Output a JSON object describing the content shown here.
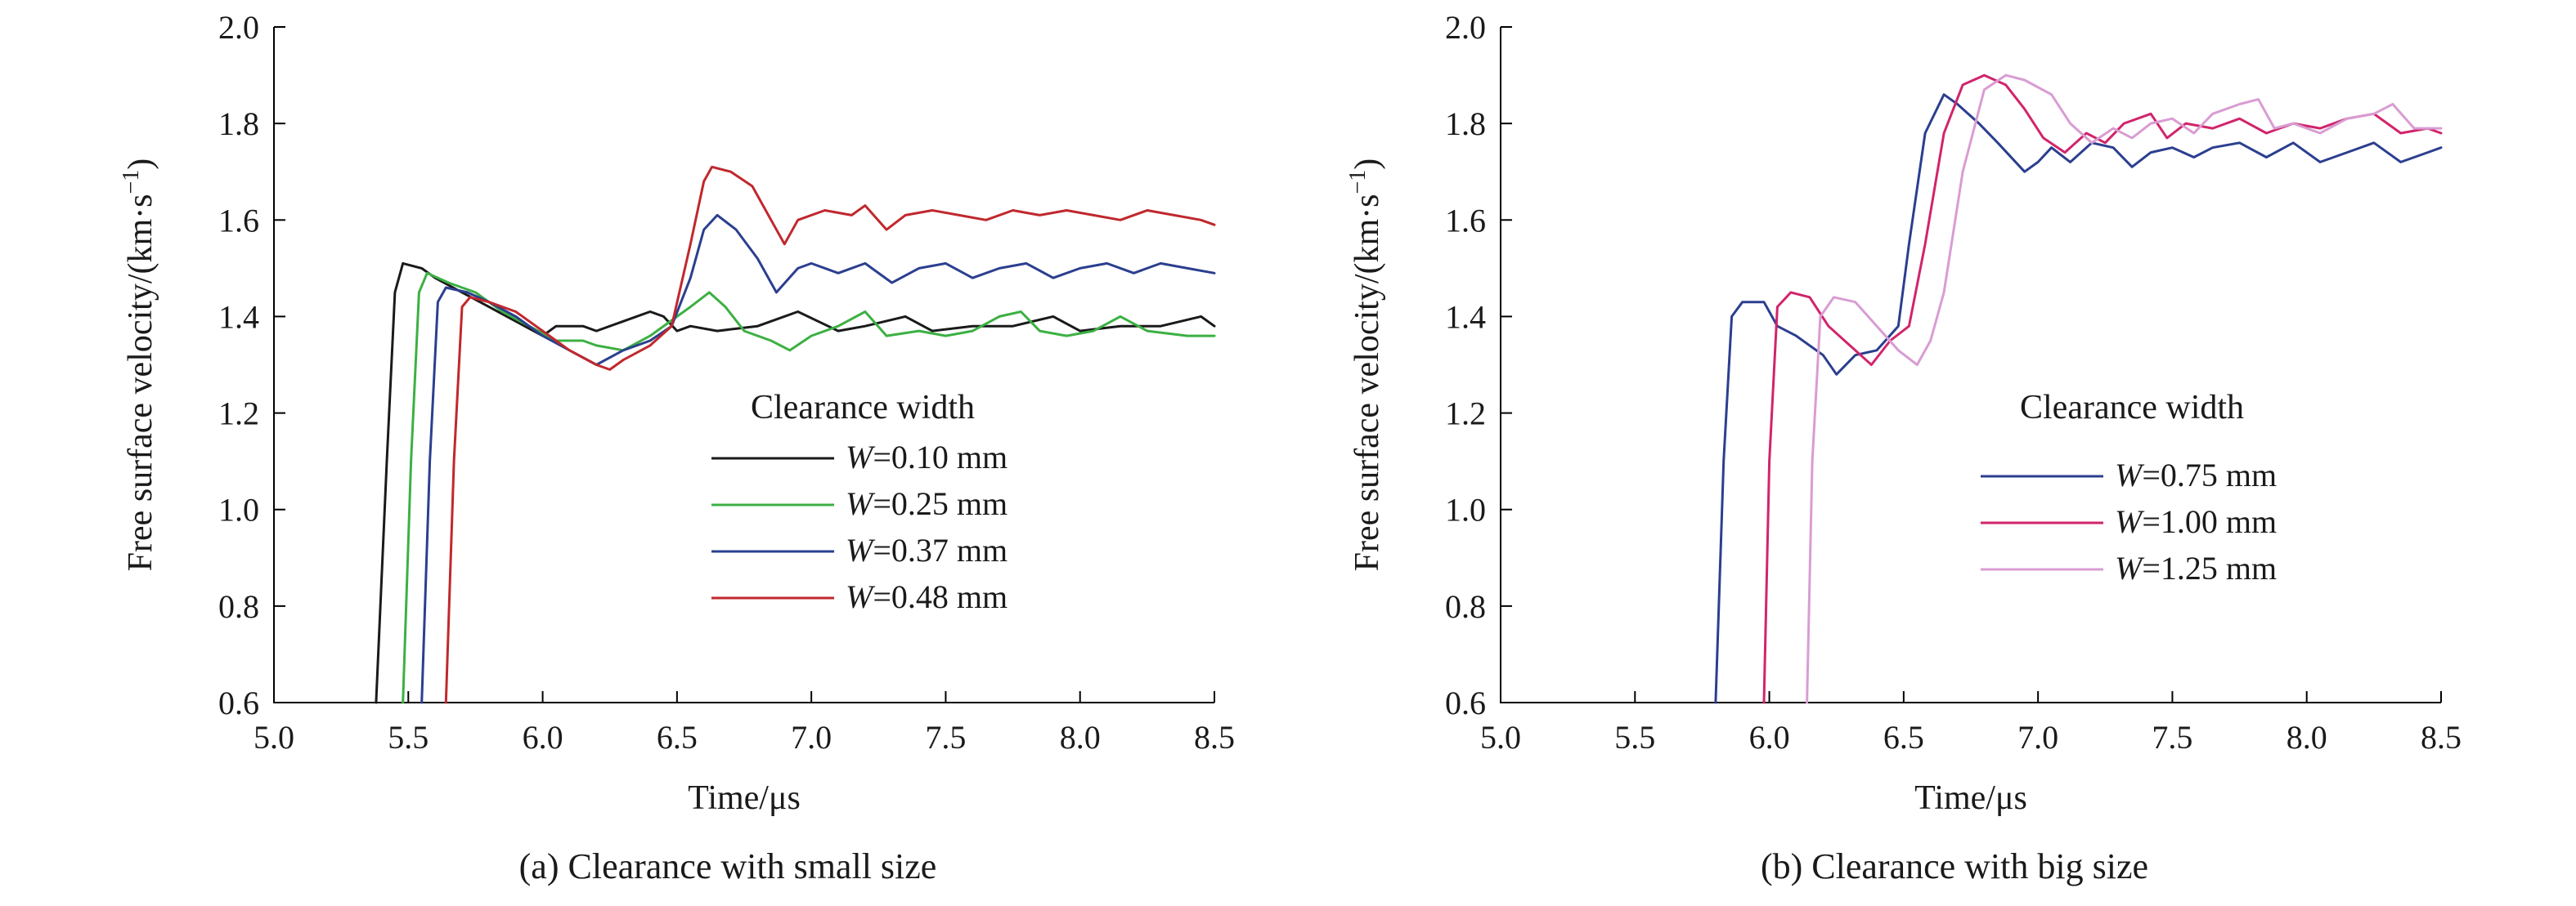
{
  "chart_data": [
    {
      "type": "line",
      "caption": "(a) Clearance with small size",
      "xlabel": "Time/μs",
      "ylabel": "Free surface velocity/(km·s",
      "ylabel_sup": "−1",
      "ylabel_tail": ")",
      "xlim": [
        5.0,
        8.5
      ],
      "ylim": [
        0.6,
        2.0
      ],
      "xticks": [
        "5.0",
        "5.5",
        "6.0",
        "6.5",
        "7.0",
        "7.5",
        "8.0",
        "8.5"
      ],
      "yticks": [
        "0.6",
        "0.8",
        "1.0",
        "1.2",
        "1.4",
        "1.6",
        "1.8",
        "2.0"
      ],
      "grid": false,
      "legend": {
        "title": "Clearance width",
        "placement": "center-right",
        "entries": [
          {
            "var": "W",
            "text": "=0.10 mm",
            "color": "#1a1a1a"
          },
          {
            "var": "W",
            "text": "=0.25 mm",
            "color": "#3cb043"
          },
          {
            "var": "W",
            "text": "=0.37 mm",
            "color": "#2b3f8f"
          },
          {
            "var": "W",
            "text": "=0.48 mm",
            "color": "#c0282d"
          }
        ]
      },
      "series": [
        {
          "color": "#1a1a1a",
          "points": [
            [
              5.38,
              0.6
            ],
            [
              5.42,
              1.1
            ],
            [
              5.45,
              1.45
            ],
            [
              5.48,
              1.51
            ],
            [
              5.55,
              1.5
            ],
            [
              5.6,
              1.48
            ],
            [
              5.7,
              1.45
            ],
            [
              5.8,
              1.42
            ],
            [
              5.9,
              1.39
            ],
            [
              6.0,
              1.36
            ],
            [
              6.05,
              1.38
            ],
            [
              6.15,
              1.38
            ],
            [
              6.2,
              1.37
            ],
            [
              6.3,
              1.39
            ],
            [
              6.4,
              1.41
            ],
            [
              6.45,
              1.4
            ],
            [
              6.5,
              1.37
            ],
            [
              6.55,
              1.38
            ],
            [
              6.65,
              1.37
            ],
            [
              6.8,
              1.38
            ],
            [
              6.95,
              1.41
            ],
            [
              7.1,
              1.37
            ],
            [
              7.2,
              1.38
            ],
            [
              7.35,
              1.4
            ],
            [
              7.45,
              1.37
            ],
            [
              7.6,
              1.38
            ],
            [
              7.75,
              1.38
            ],
            [
              7.9,
              1.4
            ],
            [
              8.0,
              1.37
            ],
            [
              8.15,
              1.38
            ],
            [
              8.3,
              1.38
            ],
            [
              8.45,
              1.4
            ],
            [
              8.5,
              1.38
            ]
          ]
        },
        {
          "color": "#3cb043",
          "points": [
            [
              5.48,
              0.6
            ],
            [
              5.51,
              1.1
            ],
            [
              5.54,
              1.45
            ],
            [
              5.57,
              1.49
            ],
            [
              5.65,
              1.47
            ],
            [
              5.75,
              1.45
            ],
            [
              5.85,
              1.41
            ],
            [
              5.95,
              1.38
            ],
            [
              6.05,
              1.35
            ],
            [
              6.15,
              1.35
            ],
            [
              6.2,
              1.34
            ],
            [
              6.3,
              1.33
            ],
            [
              6.4,
              1.36
            ],
            [
              6.5,
              1.4
            ],
            [
              6.55,
              1.42
            ],
            [
              6.62,
              1.45
            ],
            [
              6.68,
              1.42
            ],
            [
              6.75,
              1.37
            ],
            [
              6.85,
              1.35
            ],
            [
              6.92,
              1.33
            ],
            [
              7.0,
              1.36
            ],
            [
              7.1,
              1.38
            ],
            [
              7.2,
              1.41
            ],
            [
              7.28,
              1.36
            ],
            [
              7.4,
              1.37
            ],
            [
              7.5,
              1.36
            ],
            [
              7.6,
              1.37
            ],
            [
              7.7,
              1.4
            ],
            [
              7.78,
              1.41
            ],
            [
              7.85,
              1.37
            ],
            [
              7.95,
              1.36
            ],
            [
              8.05,
              1.37
            ],
            [
              8.15,
              1.4
            ],
            [
              8.25,
              1.37
            ],
            [
              8.4,
              1.36
            ],
            [
              8.5,
              1.36
            ]
          ]
        },
        {
          "color": "#2b3f8f",
          "points": [
            [
              5.55,
              0.6
            ],
            [
              5.58,
              1.1
            ],
            [
              5.61,
              1.43
            ],
            [
              5.64,
              1.46
            ],
            [
              5.72,
              1.45
            ],
            [
              5.8,
              1.43
            ],
            [
              5.9,
              1.4
            ],
            [
              6.0,
              1.36
            ],
            [
              6.1,
              1.33
            ],
            [
              6.2,
              1.3
            ],
            [
              6.3,
              1.33
            ],
            [
              6.4,
              1.35
            ],
            [
              6.48,
              1.38
            ],
            [
              6.55,
              1.48
            ],
            [
              6.6,
              1.58
            ],
            [
              6.65,
              1.61
            ],
            [
              6.72,
              1.58
            ],
            [
              6.8,
              1.52
            ],
            [
              6.87,
              1.45
            ],
            [
              6.95,
              1.5
            ],
            [
              7.0,
              1.51
            ],
            [
              7.1,
              1.49
            ],
            [
              7.2,
              1.51
            ],
            [
              7.3,
              1.47
            ],
            [
              7.4,
              1.5
            ],
            [
              7.5,
              1.51
            ],
            [
              7.6,
              1.48
            ],
            [
              7.7,
              1.5
            ],
            [
              7.8,
              1.51
            ],
            [
              7.9,
              1.48
            ],
            [
              8.0,
              1.5
            ],
            [
              8.1,
              1.51
            ],
            [
              8.2,
              1.49
            ],
            [
              8.3,
              1.51
            ],
            [
              8.4,
              1.5
            ],
            [
              8.5,
              1.49
            ]
          ]
        },
        {
          "color": "#c0282d",
          "points": [
            [
              5.64,
              0.6
            ],
            [
              5.67,
              1.1
            ],
            [
              5.7,
              1.42
            ],
            [
              5.73,
              1.44
            ],
            [
              5.8,
              1.43
            ],
            [
              5.9,
              1.41
            ],
            [
              6.0,
              1.37
            ],
            [
              6.1,
              1.33
            ],
            [
              6.2,
              1.3
            ],
            [
              6.25,
              1.29
            ],
            [
              6.3,
              1.31
            ],
            [
              6.4,
              1.34
            ],
            [
              6.48,
              1.38
            ],
            [
              6.55,
              1.55
            ],
            [
              6.6,
              1.68
            ],
            [
              6.63,
              1.71
            ],
            [
              6.7,
              1.7
            ],
            [
              6.78,
              1.67
            ],
            [
              6.85,
              1.6
            ],
            [
              6.9,
              1.55
            ],
            [
              6.95,
              1.6
            ],
            [
              7.05,
              1.62
            ],
            [
              7.15,
              1.61
            ],
            [
              7.2,
              1.63
            ],
            [
              7.28,
              1.58
            ],
            [
              7.35,
              1.61
            ],
            [
              7.45,
              1.62
            ],
            [
              7.55,
              1.61
            ],
            [
              7.65,
              1.6
            ],
            [
              7.75,
              1.62
            ],
            [
              7.85,
              1.61
            ],
            [
              7.95,
              1.62
            ],
            [
              8.05,
              1.61
            ],
            [
              8.15,
              1.6
            ],
            [
              8.25,
              1.62
            ],
            [
              8.35,
              1.61
            ],
            [
              8.45,
              1.6
            ],
            [
              8.5,
              1.59
            ]
          ]
        }
      ]
    },
    {
      "type": "line",
      "caption": "(b) Clearance with big size",
      "xlabel": "Time/μs",
      "ylabel": "Free surface velocity/(km·s",
      "ylabel_sup": "−1",
      "ylabel_tail": ")",
      "xlim": [
        5.0,
        8.5
      ],
      "ylim": [
        0.6,
        2.0
      ],
      "xticks": [
        "5.0",
        "5.5",
        "6.0",
        "6.5",
        "7.0",
        "7.5",
        "8.0",
        "8.5"
      ],
      "yticks": [
        "0.6",
        "0.8",
        "1.0",
        "1.2",
        "1.4",
        "1.6",
        "1.8",
        "2.0"
      ],
      "grid": false,
      "legend": {
        "title": "Clearance width",
        "placement": "center-right",
        "entries": [
          {
            "var": "W",
            "text": "=0.75 mm",
            "color": "#2b3f8f"
          },
          {
            "var": "W",
            "text": "=1.00 mm",
            "color": "#d1246b"
          },
          {
            "var": "W",
            "text": "=1.25 mm",
            "color": "#d99cd3"
          }
        ]
      },
      "series": [
        {
          "color": "#2b3f8f",
          "points": [
            [
              5.8,
              0.6
            ],
            [
              5.83,
              1.1
            ],
            [
              5.86,
              1.4
            ],
            [
              5.9,
              1.43
            ],
            [
              5.98,
              1.43
            ],
            [
              6.03,
              1.38
            ],
            [
              6.1,
              1.36
            ],
            [
              6.2,
              1.32
            ],
            [
              6.25,
              1.28
            ],
            [
              6.32,
              1.32
            ],
            [
              6.4,
              1.33
            ],
            [
              6.48,
              1.38
            ],
            [
              6.52,
              1.55
            ],
            [
              6.58,
              1.78
            ],
            [
              6.65,
              1.86
            ],
            [
              6.7,
              1.84
            ],
            [
              6.78,
              1.8
            ],
            [
              6.85,
              1.76
            ],
            [
              6.95,
              1.7
            ],
            [
              7.0,
              1.72
            ],
            [
              7.05,
              1.75
            ],
            [
              7.12,
              1.72
            ],
            [
              7.2,
              1.76
            ],
            [
              7.28,
              1.75
            ],
            [
              7.35,
              1.71
            ],
            [
              7.42,
              1.74
            ],
            [
              7.5,
              1.75
            ],
            [
              7.58,
              1.73
            ],
            [
              7.65,
              1.75
            ],
            [
              7.75,
              1.76
            ],
            [
              7.85,
              1.73
            ],
            [
              7.95,
              1.76
            ],
            [
              8.05,
              1.72
            ],
            [
              8.15,
              1.74
            ],
            [
              8.25,
              1.76
            ],
            [
              8.35,
              1.72
            ],
            [
              8.45,
              1.74
            ],
            [
              8.5,
              1.75
            ]
          ]
        },
        {
          "color": "#d1246b",
          "points": [
            [
              5.98,
              0.6
            ],
            [
              6.0,
              1.1
            ],
            [
              6.03,
              1.42
            ],
            [
              6.08,
              1.45
            ],
            [
              6.15,
              1.44
            ],
            [
              6.22,
              1.38
            ],
            [
              6.3,
              1.34
            ],
            [
              6.38,
              1.3
            ],
            [
              6.45,
              1.35
            ],
            [
              6.52,
              1.38
            ],
            [
              6.58,
              1.55
            ],
            [
              6.65,
              1.78
            ],
            [
              6.72,
              1.88
            ],
            [
              6.8,
              1.9
            ],
            [
              6.88,
              1.88
            ],
            [
              6.95,
              1.83
            ],
            [
              7.02,
              1.77
            ],
            [
              7.1,
              1.74
            ],
            [
              7.18,
              1.78
            ],
            [
              7.25,
              1.76
            ],
            [
              7.32,
              1.8
            ],
            [
              7.42,
              1.82
            ],
            [
              7.48,
              1.77
            ],
            [
              7.55,
              1.8
            ],
            [
              7.65,
              1.79
            ],
            [
              7.75,
              1.81
            ],
            [
              7.85,
              1.78
            ],
            [
              7.95,
              1.8
            ],
            [
              8.05,
              1.79
            ],
            [
              8.15,
              1.81
            ],
            [
              8.25,
              1.82
            ],
            [
              8.35,
              1.78
            ],
            [
              8.45,
              1.79
            ],
            [
              8.5,
              1.78
            ]
          ]
        },
        {
          "color": "#d99cd3",
          "points": [
            [
              6.14,
              0.6
            ],
            [
              6.16,
              1.1
            ],
            [
              6.19,
              1.4
            ],
            [
              6.24,
              1.44
            ],
            [
              6.32,
              1.43
            ],
            [
              6.4,
              1.38
            ],
            [
              6.48,
              1.33
            ],
            [
              6.55,
              1.3
            ],
            [
              6.6,
              1.35
            ],
            [
              6.65,
              1.45
            ],
            [
              6.72,
              1.7
            ],
            [
              6.8,
              1.87
            ],
            [
              6.88,
              1.9
            ],
            [
              6.95,
              1.89
            ],
            [
              7.05,
              1.86
            ],
            [
              7.12,
              1.8
            ],
            [
              7.2,
              1.76
            ],
            [
              7.28,
              1.79
            ],
            [
              7.35,
              1.77
            ],
            [
              7.42,
              1.8
            ],
            [
              7.5,
              1.81
            ],
            [
              7.58,
              1.78
            ],
            [
              7.65,
              1.82
            ],
            [
              7.75,
              1.84
            ],
            [
              7.82,
              1.85
            ],
            [
              7.88,
              1.79
            ],
            [
              7.95,
              1.8
            ],
            [
              8.05,
              1.78
            ],
            [
              8.15,
              1.81
            ],
            [
              8.25,
              1.82
            ],
            [
              8.32,
              1.84
            ],
            [
              8.4,
              1.79
            ],
            [
              8.5,
              1.79
            ]
          ]
        }
      ]
    }
  ]
}
